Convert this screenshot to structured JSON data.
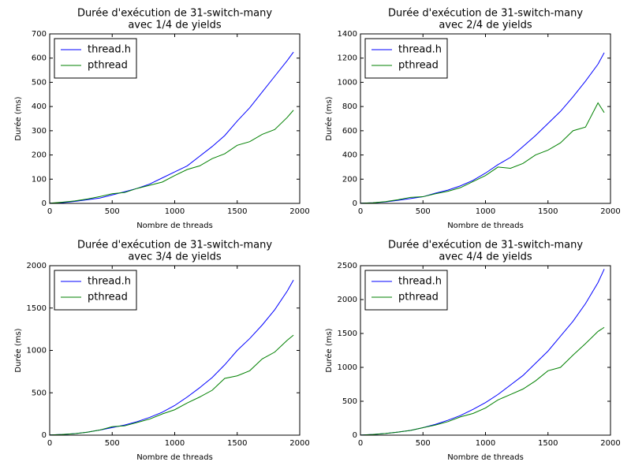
{
  "chart_data": [
    {
      "type": "line",
      "title": [
        "Durée d'exécution de 31-switch-many",
        "avec 1/4 de yields"
      ],
      "x_label": "Nombre de threads",
      "y_label": "Durée (ms)",
      "x": [
        0,
        100,
        200,
        300,
        400,
        500,
        600,
        700,
        800,
        900,
        1000,
        1100,
        1200,
        1300,
        1400,
        1500,
        1600,
        1700,
        1800,
        1900,
        1950
      ],
      "xlim": [
        0,
        2000
      ],
      "xticks": [
        0,
        500,
        1000,
        1500,
        2000
      ],
      "ylim": [
        0,
        700
      ],
      "yticks": [
        0,
        100,
        200,
        300,
        400,
        500,
        600,
        700
      ],
      "legend": "upper left",
      "series": [
        {
          "name": "thread.h",
          "color": "#0000ff",
          "values": [
            1,
            3,
            8,
            15,
            22,
            35,
            48,
            62,
            80,
            105,
            130,
            155,
            195,
            235,
            280,
            340,
            395,
            460,
            525,
            590,
            625
          ]
        },
        {
          "name": "pthread",
          "color": "#008000",
          "values": [
            1,
            5,
            10,
            18,
            28,
            40,
            45,
            62,
            75,
            88,
            115,
            140,
            155,
            185,
            205,
            240,
            255,
            285,
            305,
            355,
            385
          ]
        }
      ]
    },
    {
      "type": "line",
      "title": [
        "Durée d'exécution de 31-switch-many",
        "avec 2/4 de yields"
      ],
      "x_label": "Nombre de threads",
      "y_label": "Durée (ms)",
      "x": [
        0,
        100,
        200,
        300,
        400,
        500,
        600,
        700,
        800,
        900,
        1000,
        1100,
        1200,
        1300,
        1400,
        1500,
        1600,
        1700,
        1800,
        1900,
        1950
      ],
      "xlim": [
        0,
        2000
      ],
      "xticks": [
        0,
        500,
        1000,
        1500,
        2000
      ],
      "ylim": [
        0,
        1400
      ],
      "yticks": [
        0,
        200,
        400,
        600,
        800,
        1000,
        1200,
        1400
      ],
      "legend": "upper left",
      "series": [
        {
          "name": "thread.h",
          "color": "#0000ff",
          "values": [
            2,
            5,
            12,
            25,
            40,
            55,
            85,
            110,
            145,
            190,
            250,
            320,
            380,
            470,
            560,
            660,
            760,
            880,
            1010,
            1150,
            1245
          ]
        },
        {
          "name": "pthread",
          "color": "#008000",
          "values": [
            2,
            5,
            15,
            30,
            50,
            55,
            80,
            100,
            130,
            180,
            230,
            300,
            290,
            330,
            400,
            440,
            500,
            600,
            630,
            830,
            750
          ]
        }
      ]
    },
    {
      "type": "line",
      "title": [
        "Durée d'exécution de 31-switch-many",
        "avec 3/4 de yields"
      ],
      "x_label": "Nombre de threads",
      "y_label": "Durée (ms)",
      "x": [
        0,
        100,
        200,
        300,
        400,
        500,
        600,
        700,
        800,
        900,
        1000,
        1100,
        1200,
        1300,
        1400,
        1500,
        1600,
        1700,
        1800,
        1900,
        1950
      ],
      "xlim": [
        0,
        2000
      ],
      "xticks": [
        0,
        500,
        1000,
        1500,
        2000
      ],
      "ylim": [
        0,
        2000
      ],
      "yticks": [
        0,
        500,
        1000,
        1500,
        2000
      ],
      "legend": "upper left",
      "series": [
        {
          "name": "thread.h",
          "color": "#0000ff",
          "values": [
            2,
            8,
            18,
            35,
            60,
            90,
            120,
            160,
            210,
            270,
            350,
            450,
            560,
            680,
            830,
            1000,
            1140,
            1300,
            1480,
            1700,
            1830
          ]
        },
        {
          "name": "pthread",
          "color": "#008000",
          "values": [
            2,
            8,
            18,
            35,
            60,
            100,
            110,
            150,
            190,
            250,
            300,
            380,
            450,
            530,
            670,
            700,
            760,
            900,
            980,
            1120,
            1180
          ]
        }
      ]
    },
    {
      "type": "line",
      "title": [
        "Durée d'exécution de 31-switch-many",
        "avec 4/4 de yields"
      ],
      "x_label": "Nombre de threads",
      "y_label": "Durée (ms)",
      "x": [
        0,
        100,
        200,
        300,
        400,
        500,
        600,
        700,
        800,
        900,
        1000,
        1100,
        1200,
        1300,
        1400,
        1500,
        1600,
        1700,
        1800,
        1900,
        1950
      ],
      "xlim": [
        0,
        2000
      ],
      "xticks": [
        0,
        500,
        1000,
        1500,
        2000
      ],
      "ylim": [
        0,
        2500
      ],
      "yticks": [
        0,
        500,
        1000,
        1500,
        2000,
        2500
      ],
      "legend": "upper left",
      "series": [
        {
          "name": "thread.h",
          "color": "#0000ff",
          "values": [
            2,
            10,
            25,
            45,
            70,
            110,
            160,
            220,
            290,
            380,
            480,
            600,
            740,
            880,
            1060,
            1240,
            1460,
            1680,
            1940,
            2250,
            2450
          ]
        },
        {
          "name": "pthread",
          "color": "#008000",
          "values": [
            2,
            10,
            25,
            45,
            70,
            110,
            150,
            200,
            270,
            320,
            400,
            520,
            600,
            680,
            800,
            950,
            1000,
            1180,
            1350,
            1530,
            1590
          ]
        }
      ]
    }
  ]
}
